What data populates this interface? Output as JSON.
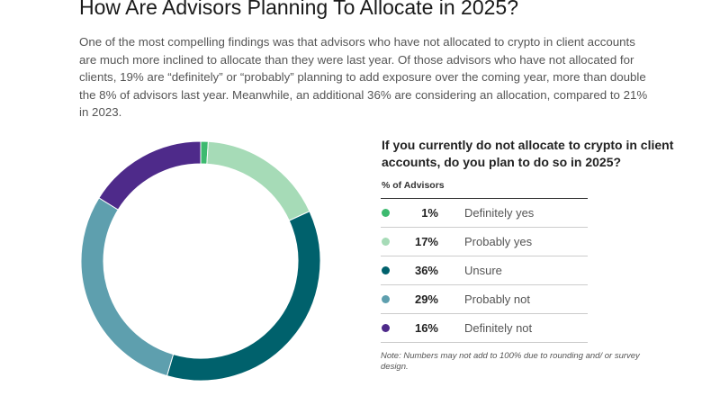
{
  "title": "How Are Advisors Planning To Allocate in 2025?",
  "intro": "One of the most compelling findings was that advisors who have not allocated to crypto in client accounts are much more inclined to allocate than they were last year. Of those advisors who have not allocated for clients, 19% are “definitely” or “probably” planning to add exposure over the coming year, more than double the 8% of advisors last year. Meanwhile, an additional 36% are considering an allocation, compared to 21% in 2023.",
  "chart_data": {
    "type": "pie",
    "donut": true,
    "title": "If you currently do not allocate to crypto in client accounts, do you plan to do so in 2025?",
    "unit_label": "% of Advisors",
    "categories": [
      "Definitely yes",
      "Probably yes",
      "Unsure",
      "Probably not",
      "Definitely not"
    ],
    "values": [
      1,
      17,
      36,
      29,
      16
    ],
    "value_labels": [
      "1%",
      "17%",
      "36%",
      "29%",
      "16%"
    ],
    "colors": [
      "#3dba6f",
      "#a6dbb7",
      "#00616c",
      "#5e9fae",
      "#4e2a8a"
    ],
    "legend": "right",
    "note": "Note: Numbers may not add to 100% due to rounding and/ or survey design."
  }
}
